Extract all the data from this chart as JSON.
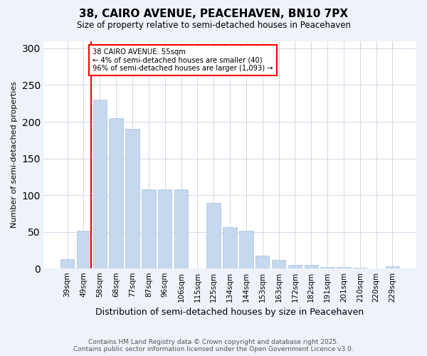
{
  "title": "38, CAIRO AVENUE, PEACEHAVEN, BN10 7PX",
  "subtitle": "Size of property relative to semi-detached houses in Peacehaven",
  "xlabel": "Distribution of semi-detached houses by size in Peacehaven",
  "ylabel": "Number of semi-detached properties",
  "categories": [
    "39sqm",
    "49sqm",
    "58sqm",
    "68sqm",
    "77sqm",
    "87sqm",
    "96sqm",
    "106sqm",
    "115sqm",
    "125sqm",
    "134sqm",
    "144sqm",
    "153sqm",
    "163sqm",
    "172sqm",
    "182sqm",
    "191sqm",
    "201sqm",
    "210sqm",
    "220sqm",
    "229sqm"
  ],
  "values": [
    13,
    52,
    230,
    205,
    190,
    108,
    108,
    108,
    0,
    90,
    57,
    52,
    18,
    12,
    5,
    5,
    2,
    2,
    1,
    0,
    3
  ],
  "bar_color": "#c5d8ed",
  "bar_edge_color": "#a8c4de",
  "annotation_title": "38 CAIRO AVENUE: 55sqm",
  "annotation_line1": "← 4% of semi-detached houses are smaller (40)",
  "annotation_line2": "96% of semi-detached houses are larger (1,093) →",
  "vline_xidx": 1.45,
  "ylim": [
    0,
    310
  ],
  "yticks": [
    0,
    50,
    100,
    150,
    200,
    250,
    300
  ],
  "footer1": "Contains HM Land Registry data © Crown copyright and database right 2025.",
  "footer2": "Contains public sector information licensed under the Open Government Licence v3.0.",
  "bg_color": "#eef2f9",
  "plot_bg_color": "#ffffff",
  "grid_color": "#d0d8e8"
}
